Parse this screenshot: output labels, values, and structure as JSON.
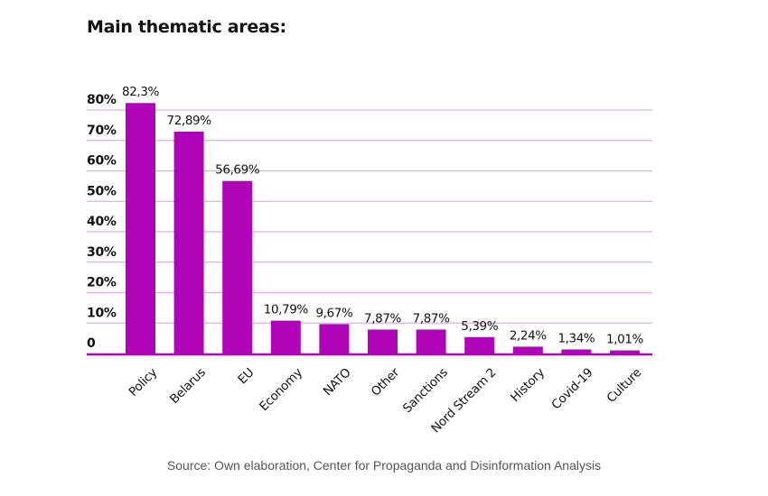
{
  "chart_data": {
    "type": "bar",
    "title": "Main thematic areas:",
    "xlabel": "",
    "ylabel": "",
    "ylim": [
      0,
      80
    ],
    "yticks": [
      0,
      10,
      20,
      30,
      40,
      50,
      60,
      70,
      80
    ],
    "ytick_labels": [
      "0",
      "10%",
      "20%",
      "30%",
      "40%",
      "50%",
      "60%",
      "70%",
      "80%"
    ],
    "grid": true,
    "categories": [
      "Policy",
      "Belarus",
      "EU",
      "Economy",
      "NATO",
      "Other",
      "Sanctions",
      "Nord Stream 2",
      "History",
      "Covid-19",
      "Culture"
    ],
    "values": [
      82.3,
      72.89,
      56.69,
      10.79,
      9.67,
      7.87,
      7.87,
      5.39,
      2.24,
      1.34,
      1.01
    ],
    "data_labels": [
      "82,3%",
      "72,89%",
      "56,69%",
      "10,79%",
      "9,67%",
      "7,87%",
      "7,87%",
      "5,39%",
      "2,24%",
      "1,34%",
      "1,01%"
    ],
    "colors": {
      "bar": "#b004b8",
      "grid": "#dcb0df",
      "axis": "#b004b8",
      "text": "#111111"
    }
  },
  "source": "Source: Own elaboration, Center for Propaganda and Disinformation Analysis"
}
